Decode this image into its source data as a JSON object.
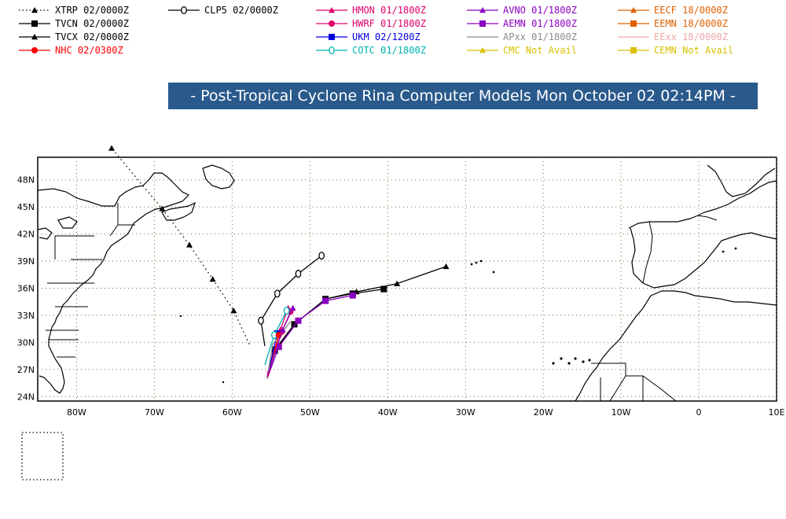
{
  "title": "- Post-Tropical Cyclone Rina Computer Models Mon October 02 02:14PM -",
  "legend": [
    {
      "id": "xtrp",
      "label": "XTRP 02/0000Z",
      "color": "#000000",
      "marker": "triangle",
      "dash": "dot"
    },
    {
      "id": "tvcn",
      "label": "TVCN 02/0000Z",
      "color": "#000000",
      "marker": "square",
      "dash": "solid"
    },
    {
      "id": "tvcx",
      "label": "TVCX 02/0000Z",
      "color": "#000000",
      "marker": "triangle",
      "dash": "solid"
    },
    {
      "id": "nhc",
      "label": "NHC 02/0300Z",
      "color": "#ff0000",
      "marker": "circle",
      "dash": "solid"
    },
    {
      "id": "clp5",
      "label": "CLP5 02/0000Z",
      "color": "#000000",
      "marker": "zero",
      "dash": "solid"
    },
    {
      "id": "hmon",
      "label": "HMON 01/1800Z",
      "color": "#e0006a",
      "marker": "triangle",
      "dash": "solid"
    },
    {
      "id": "hwrf",
      "label": "HWRF 01/1800Z",
      "color": "#e0006a",
      "marker": "circle",
      "dash": "solid"
    },
    {
      "id": "ukm",
      "label": "UKM  02/1200Z",
      "color": "#0000e0",
      "marker": "square",
      "dash": "solid"
    },
    {
      "id": "cotc",
      "label": "COTC 01/1800Z",
      "color": "#00b0b0",
      "marker": "zero",
      "dash": "solid"
    },
    {
      "id": "avno",
      "label": "AVNO 01/1800Z",
      "color": "#8a00c0",
      "marker": "triangle",
      "dash": "solid"
    },
    {
      "id": "aemn",
      "label": "AEMN 01/1800Z",
      "color": "#8a00c0",
      "marker": "square",
      "dash": "solid"
    },
    {
      "id": "apxx",
      "label": "APxx  01/1800Z",
      "color": "#8c8c8c",
      "marker": "none",
      "dash": "solid"
    },
    {
      "id": "cmc",
      "label": "CMC   Not Avail",
      "color": "#d8c000",
      "marker": "triangle",
      "dash": "solid"
    },
    {
      "id": "eecf",
      "label": "EECF 18/0000Z",
      "color": "#e06000",
      "marker": "triangle",
      "dash": "solid"
    },
    {
      "id": "eemn",
      "label": "EEMN 18/0000Z",
      "color": "#e06000",
      "marker": "square",
      "dash": "solid"
    },
    {
      "id": "eexx",
      "label": "EExx  18/0000Z",
      "color": "#f0a8a8",
      "marker": "none",
      "dash": "solid"
    },
    {
      "id": "cemn",
      "label": "CEMN Not Avail",
      "color": "#d8c000",
      "marker": "square",
      "dash": "solid"
    }
  ],
  "map": {
    "lon_min": -85,
    "lon_max": 10,
    "lat_min": 23.5,
    "lat_max": 50.5,
    "lat_ticks": [
      {
        "value": 24,
        "label": "24N"
      },
      {
        "value": 27,
        "label": "27N"
      },
      {
        "value": 30,
        "label": "30N"
      },
      {
        "value": 33,
        "label": "33N"
      },
      {
        "value": 36,
        "label": "36N"
      },
      {
        "value": 39,
        "label": "39N"
      },
      {
        "value": 42,
        "label": "42N"
      },
      {
        "value": 45,
        "label": "45N"
      },
      {
        "value": 48,
        "label": "48N"
      }
    ],
    "lon_ticks": [
      {
        "value": -80,
        "label": "80W"
      },
      {
        "value": -70,
        "label": "70W"
      },
      {
        "value": -60,
        "label": "60W"
      },
      {
        "value": -50,
        "label": "50W"
      },
      {
        "value": -40,
        "label": "40W"
      },
      {
        "value": -30,
        "label": "30W"
      },
      {
        "value": -20,
        "label": "20W"
      },
      {
        "value": -10,
        "label": "10W"
      },
      {
        "value": 0,
        "label": "0"
      },
      {
        "value": 10,
        "label": "10E"
      }
    ],
    "tracks": [
      {
        "id": "xtrp",
        "color": "#000000",
        "dash": "dot",
        "marker": "triangle",
        "points": [
          [
            -57.8,
            29.8
          ],
          [
            -59.8,
            33.5
          ],
          [
            -62.5,
            37.0
          ],
          [
            -65.5,
            40.8
          ],
          [
            -69.0,
            44.8
          ],
          [
            -75.5,
            51.5
          ]
        ]
      },
      {
        "id": "clp5",
        "color": "#000000",
        "dash": "solid",
        "marker": "zero",
        "points": [
          [
            -55.8,
            29.6
          ],
          [
            -56.3,
            32.4
          ],
          [
            -54.2,
            35.4
          ],
          [
            -51.5,
            37.6
          ],
          [
            -48.5,
            39.6
          ]
        ]
      },
      {
        "id": "tvcx",
        "color": "#000000",
        "dash": "solid",
        "marker": "triangle",
        "points": [
          [
            -55.5,
            26.0
          ],
          [
            -54.5,
            29.0
          ],
          [
            -52.0,
            32.0
          ],
          [
            -48.0,
            34.8
          ],
          [
            -44.0,
            35.6
          ],
          [
            -38.8,
            36.5
          ],
          [
            -32.5,
            38.4
          ]
        ]
      },
      {
        "id": "tvcn",
        "color": "#000000",
        "dash": "solid",
        "marker": "square",
        "points": [
          [
            -55.5,
            26.0
          ],
          [
            -54.5,
            29.2
          ],
          [
            -52.0,
            32.0
          ],
          [
            -48.0,
            34.8
          ],
          [
            -44.5,
            35.4
          ],
          [
            -40.5,
            35.9
          ]
        ]
      },
      {
        "id": "aemn",
        "color": "#8a00c0",
        "dash": "solid",
        "marker": "square",
        "points": [
          [
            -55.5,
            26.0
          ],
          [
            -54.0,
            29.5
          ],
          [
            -51.5,
            32.4
          ],
          [
            -48.0,
            34.6
          ],
          [
            -44.5,
            35.2
          ]
        ]
      },
      {
        "id": "hwrf",
        "color": "#e0006a",
        "dash": "solid",
        "marker": "circle",
        "points": [
          [
            -55.5,
            26.5
          ],
          [
            -53.6,
            31.2
          ],
          [
            -52.5,
            33.4
          ]
        ]
      },
      {
        "id": "hmon",
        "color": "#e0006a",
        "dash": "solid",
        "marker": "triangle",
        "points": [
          [
            -55.3,
            27.0
          ],
          [
            -53.8,
            31.4
          ],
          [
            -52.8,
            33.8
          ]
        ]
      },
      {
        "id": "ukm",
        "color": "#0000e0",
        "dash": "solid",
        "marker": "square",
        "points": [
          [
            -55.4,
            26.5
          ],
          [
            -54.2,
            31.0
          ]
        ]
      },
      {
        "id": "cotc",
        "color": "#00b0b0",
        "dash": "solid",
        "marker": "zero",
        "points": [
          [
            -55.8,
            27.5
          ],
          [
            -54.6,
            30.8
          ],
          [
            -53.0,
            33.5
          ]
        ]
      },
      {
        "id": "apxx",
        "color": "#8c8c8c",
        "dash": "solid",
        "marker": "none",
        "points": [
          [
            -55.5,
            26.0
          ],
          [
            -54.8,
            29.8
          ],
          [
            -52.5,
            32.3
          ]
        ]
      },
      {
        "id": "nhc",
        "color": "#ff0000",
        "dash": "solid",
        "marker": "circle",
        "points": [
          [
            -55.4,
            26.2
          ],
          [
            -54.0,
            30.8
          ]
        ]
      },
      {
        "id": "avno",
        "color": "#8a00c0",
        "dash": "solid",
        "marker": "triangle",
        "points": [
          [
            -55.5,
            26.2
          ],
          [
            -53.5,
            31.4
          ],
          [
            -52.2,
            33.8
          ]
        ]
      }
    ]
  }
}
